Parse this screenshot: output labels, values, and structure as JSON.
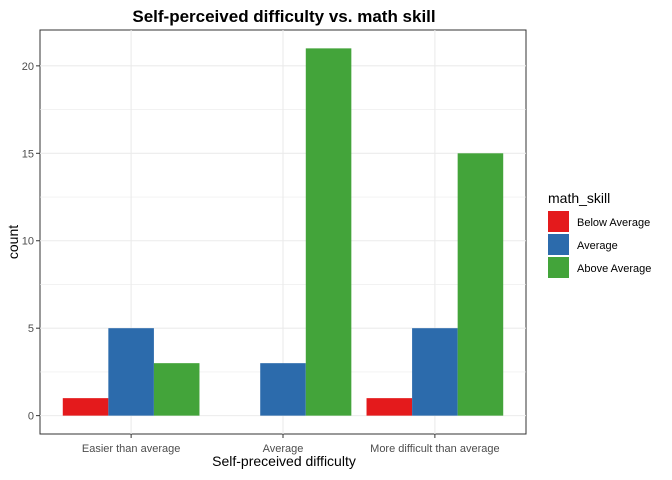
{
  "chart_data": {
    "type": "bar",
    "title": "Self-perceived difficulty vs. math skill",
    "xlabel": "Self-preceived difficulty",
    "ylabel": "count",
    "categories": [
      "Easier than average",
      "Average",
      "More difficult than average"
    ],
    "series": [
      {
        "name": "Below Average",
        "color": "#E41A1C",
        "values": [
          1,
          0,
          1
        ]
      },
      {
        "name": "Average",
        "color": "#2C6BAC",
        "values": [
          5,
          3,
          5
        ]
      },
      {
        "name": "Above Average",
        "color": "#43A43A",
        "values": [
          3,
          21,
          15
        ]
      }
    ],
    "ylim": [
      -1.05,
      22.05
    ],
    "yticks": [
      0,
      5,
      10,
      15,
      20
    ],
    "grid": true,
    "legend": {
      "title": "math_skill",
      "position": "right"
    }
  }
}
